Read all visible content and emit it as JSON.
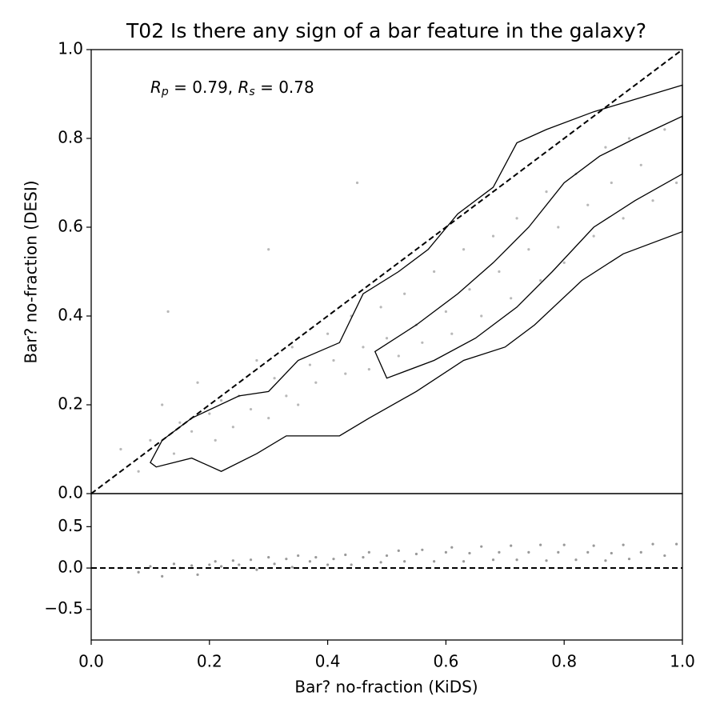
{
  "chart_data": [
    {
      "type": "scatter",
      "title": "T02 Is there any sign of a bar feature in the galaxy?",
      "ylabel": "Bar? no-fraction (DESI)",
      "annotation": [
        "R",
        "p",
        " = 0.79, ",
        "R",
        "s",
        " = 0.78"
      ],
      "xlim": [
        0,
        1
      ],
      "ylim": [
        0,
        1
      ],
      "yticks": [
        {
          "value": 0,
          "label": "0.0"
        },
        0.2,
        0.4,
        0.6,
        0.8,
        {
          "value": 1,
          "label": "1.0"
        }
      ],
      "diagonal": true,
      "color": "#888888",
      "x": [
        0.05,
        0.08,
        0.1,
        0.12,
        0.14,
        0.15,
        0.17,
        0.18,
        0.2,
        0.21,
        0.22,
        0.24,
        0.25,
        0.27,
        0.28,
        0.3,
        0.31,
        0.33,
        0.34,
        0.35,
        0.37,
        0.38,
        0.4,
        0.41,
        0.43,
        0.44,
        0.46,
        0.47,
        0.49,
        0.5,
        0.52,
        0.53,
        0.55,
        0.56,
        0.58,
        0.6,
        0.61,
        0.63,
        0.64,
        0.66,
        0.68,
        0.69,
        0.71,
        0.72,
        0.74,
        0.76,
        0.77,
        0.79,
        0.8,
        0.82,
        0.84,
        0.85,
        0.87,
        0.88,
        0.9,
        0.91,
        0.93,
        0.95,
        0.97,
        0.99,
        0.13,
        0.3,
        0.45
      ],
      "y": [
        0.1,
        0.05,
        0.12,
        0.2,
        0.09,
        0.16,
        0.14,
        0.25,
        0.18,
        0.12,
        0.21,
        0.15,
        0.22,
        0.19,
        0.3,
        0.17,
        0.26,
        0.22,
        0.33,
        0.2,
        0.29,
        0.25,
        0.36,
        0.3,
        0.27,
        0.4,
        0.33,
        0.28,
        0.42,
        0.35,
        0.31,
        0.45,
        0.38,
        0.34,
        0.5,
        0.41,
        0.36,
        0.55,
        0.46,
        0.4,
        0.58,
        0.5,
        0.44,
        0.62,
        0.55,
        0.48,
        0.68,
        0.6,
        0.52,
        0.72,
        0.65,
        0.58,
        0.78,
        0.7,
        0.62,
        0.8,
        0.74,
        0.66,
        0.82,
        0.7,
        0.41,
        0.55,
        0.7
      ],
      "contours": [
        {
          "x": [
            0.1,
            0.12,
            0.17,
            0.25,
            0.3,
            0.35,
            0.42,
            0.46,
            0.52,
            0.57,
            0.62,
            0.68,
            0.72,
            0.77,
            0.85,
            1.0,
            1.0,
            0.9,
            0.83,
            0.75,
            0.7,
            0.63,
            0.55,
            0.47,
            0.42,
            0.33,
            0.28,
            0.22,
            0.17,
            0.11
          ],
          "y": [
            0.07,
            0.12,
            0.17,
            0.22,
            0.23,
            0.3,
            0.34,
            0.45,
            0.5,
            0.55,
            0.63,
            0.69,
            0.79,
            0.82,
            0.86,
            0.92,
            0.59,
            0.54,
            0.48,
            0.38,
            0.33,
            0.3,
            0.23,
            0.17,
            0.13,
            0.13,
            0.09,
            0.05,
            0.08,
            0.06
          ]
        },
        {
          "x": [
            0.48,
            0.55,
            0.62,
            0.68,
            0.74,
            0.8,
            0.86,
            0.92,
            1.0,
            1.0,
            0.92,
            0.85,
            0.78,
            0.72,
            0.65,
            0.58,
            0.5
          ],
          "y": [
            0.32,
            0.38,
            0.45,
            0.52,
            0.6,
            0.7,
            0.76,
            0.8,
            0.85,
            0.72,
            0.66,
            0.6,
            0.5,
            0.42,
            0.35,
            0.3,
            0.26
          ]
        }
      ]
    },
    {
      "type": "scatter",
      "xlabel": "Bar? no-fraction (KiDS)",
      "xlim": [
        0,
        1
      ],
      "ylim": [
        -0.87,
        0.9
      ],
      "xticks": [
        {
          "value": 0,
          "label": "0.0"
        },
        0.2,
        0.4,
        0.6,
        0.8,
        {
          "value": 1,
          "label": "1.0"
        }
      ],
      "yticks": [
        {
          "value": -0.5,
          "label": "−0.5"
        },
        {
          "value": 0,
          "label": "0.0"
        },
        0.5
      ],
      "hline": 0,
      "color": "#555555",
      "x": [
        0.05,
        0.08,
        0.1,
        0.12,
        0.14,
        0.15,
        0.17,
        0.18,
        0.2,
        0.21,
        0.22,
        0.24,
        0.25,
        0.27,
        0.28,
        0.3,
        0.31,
        0.33,
        0.34,
        0.35,
        0.37,
        0.38,
        0.4,
        0.41,
        0.43,
        0.44,
        0.46,
        0.47,
        0.49,
        0.5,
        0.52,
        0.53,
        0.55,
        0.56,
        0.58,
        0.6,
        0.61,
        0.63,
        0.64,
        0.66,
        0.68,
        0.69,
        0.71,
        0.72,
        0.74,
        0.76,
        0.77,
        0.79,
        0.8,
        0.82,
        0.84,
        0.85,
        0.87,
        0.88,
        0.9,
        0.91,
        0.93,
        0.95,
        0.97,
        0.99
      ],
      "y": [
        0.0,
        -0.05,
        0.02,
        -0.1,
        0.05,
        0.0,
        0.03,
        -0.08,
        0.04,
        0.08,
        0.02,
        0.09,
        0.04,
        0.1,
        -0.02,
        0.13,
        0.05,
        0.11,
        0.01,
        0.15,
        0.08,
        0.13,
        0.04,
        0.11,
        0.16,
        0.04,
        0.13,
        0.19,
        0.07,
        0.15,
        0.21,
        0.08,
        0.17,
        0.22,
        0.08,
        0.19,
        0.25,
        0.08,
        0.18,
        0.26,
        0.1,
        0.19,
        0.27,
        0.1,
        0.19,
        0.28,
        0.09,
        0.19,
        0.28,
        0.1,
        0.19,
        0.27,
        0.09,
        0.18,
        0.28,
        0.11,
        0.19,
        0.29,
        0.15,
        0.29
      ]
    }
  ]
}
